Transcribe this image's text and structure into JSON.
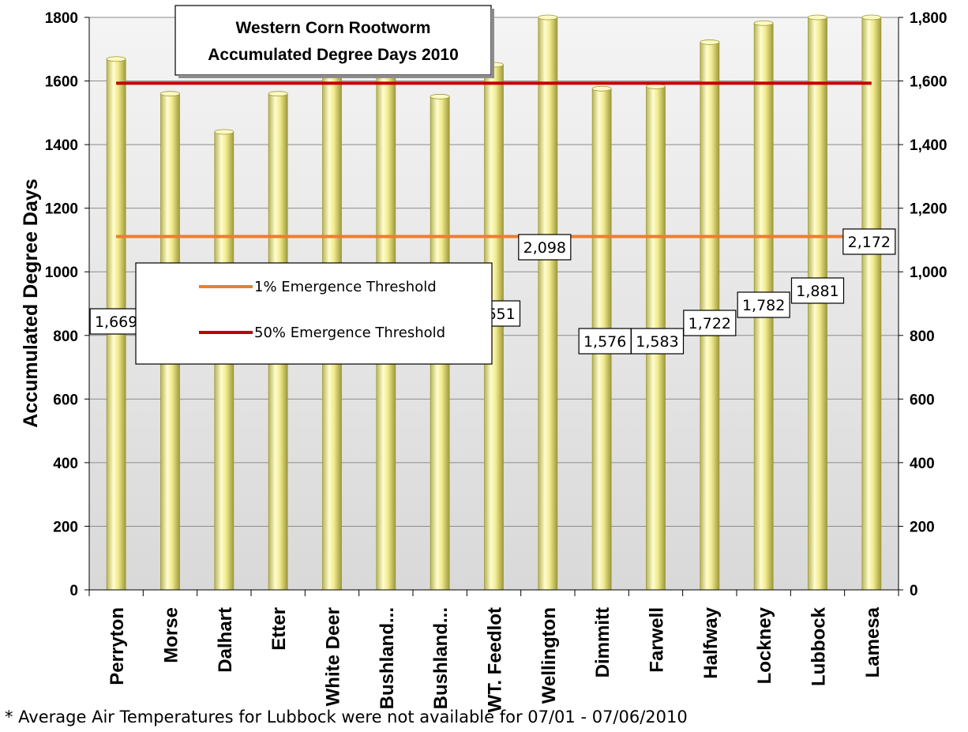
{
  "chart_data": {
    "type": "bar",
    "title_line1": "Western Corn Rootworm",
    "title_line2": "Accumulated Degree Days 2010",
    "ylabel": "Accumulated Degree Days",
    "ylim": [
      0,
      1800
    ],
    "left_ticks": [
      "0",
      "200",
      "400",
      "600",
      "800",
      "1000",
      "1200",
      "1400",
      "1600",
      "1800"
    ],
    "right_ticks": [
      "0",
      "200",
      "400",
      "600",
      "800",
      "1,000",
      "1,200",
      "1,400",
      "1,600",
      "1,800"
    ],
    "tick_values": [
      0,
      200,
      400,
      600,
      800,
      1000,
      1200,
      1400,
      1600,
      1800
    ],
    "categories": [
      "Perryton",
      "Morse",
      "Dalhart",
      "Etter",
      "White Deer",
      "Bushland...",
      "Bushland...",
      "WT. Feedlot",
      "Wellington",
      "Dimmitt",
      "Farwell",
      "Halfway",
      "Lockney",
      "Lubbock",
      "Lamesa"
    ],
    "values": [
      1669,
      1560,
      1440,
      1560,
      1640,
      1630,
      1551,
      1651,
      2098,
      1576,
      1583,
      1722,
      1782,
      1881,
      2172
    ],
    "data_labels": [
      "1,669",
      "",
      "1,440",
      "",
      "",
      "",
      "",
      "1,651",
      "2,098",
      "1,576",
      "1,583",
      "1,722",
      "1,782",
      "1,881",
      "2,172"
    ],
    "thresholds": [
      {
        "name": "1% Emergence Threshold",
        "value": 1111,
        "color": "#ED7D31"
      },
      {
        "name": "50% Emergence Threshold",
        "value": 1593,
        "color": "#C00000"
      }
    ],
    "bar_color": "#F2EE9A",
    "bar_edge_color": "#9C9A3A",
    "legend_position": "center-left",
    "grid": true
  },
  "footnote": "* Average Air Temperatures for Lubbock were not available for 07/01 - 07/06/2010"
}
